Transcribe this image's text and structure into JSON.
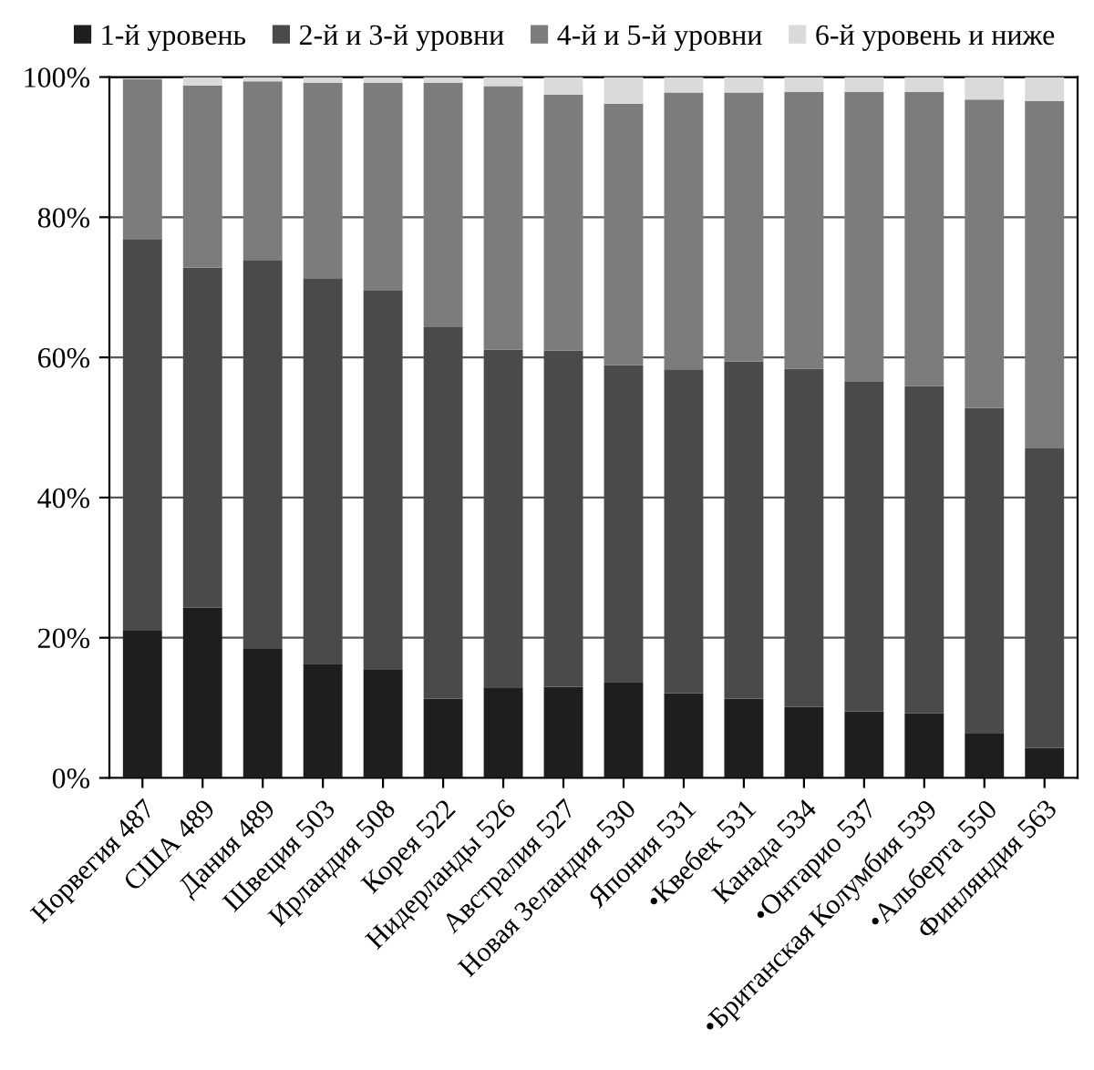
{
  "chart_data": {
    "type": "bar",
    "stacked": true,
    "categories": [
      "Норвегия 487",
      "США 489",
      "Дания 489",
      "Швеция 503",
      "Ирландия 508",
      "Корея 522",
      "Нидерланды 526",
      "Австралия 527",
      "Новая Зеландия 530",
      "Япония 531",
      "•Квебек 531",
      "Канада 534",
      "•Онтарио 537",
      "•Британская Колумбия 539",
      "•Альберта 550",
      "Финляндия 563"
    ],
    "series": [
      {
        "name": "1-й уровень",
        "color": "#1e1e1e",
        "values": [
          21.0,
          24.3,
          18.4,
          16.3,
          15.4,
          11.3,
          12.8,
          13.0,
          13.7,
          12.1,
          11.3,
          10.1,
          9.5,
          9.2,
          6.3,
          4.3
        ]
      },
      {
        "name": "2-й и 3-й уровни",
        "color": "#4a4a4a",
        "values": [
          55.9,
          48.5,
          55.5,
          55.0,
          54.1,
          53.0,
          48.3,
          48.0,
          45.2,
          46.2,
          48.1,
          48.3,
          47.0,
          46.7,
          46.5,
          42.7
        ]
      },
      {
        "name": "4-й и 5-й уровни",
        "color": "#7c7c7c",
        "values": [
          22.8,
          26.0,
          25.5,
          27.9,
          29.7,
          34.9,
          37.6,
          36.5,
          37.3,
          39.5,
          38.4,
          39.5,
          41.4,
          42.0,
          44.0,
          49.6
        ]
      },
      {
        "name": "6-й уровень и ниже",
        "color": "#dadada",
        "values": [
          null,
          1.2,
          0.6,
          0.8,
          0.8,
          0.8,
          1.3,
          2.5,
          3.8,
          2.2,
          2.2,
          2.1,
          2.1,
          2.1,
          3.2,
          3.4
        ]
      }
    ],
    "ylim": [
      0,
      100
    ],
    "yticks": [
      {
        "value": 0,
        "label": "0%"
      },
      {
        "value": 20,
        "label": "20%"
      },
      {
        "value": 40,
        "label": "40%"
      },
      {
        "value": 60,
        "label": "60%"
      },
      {
        "value": 80,
        "label": "80%"
      },
      {
        "value": 100,
        "label": "100%"
      }
    ],
    "grid": "y",
    "legend": "top"
  }
}
